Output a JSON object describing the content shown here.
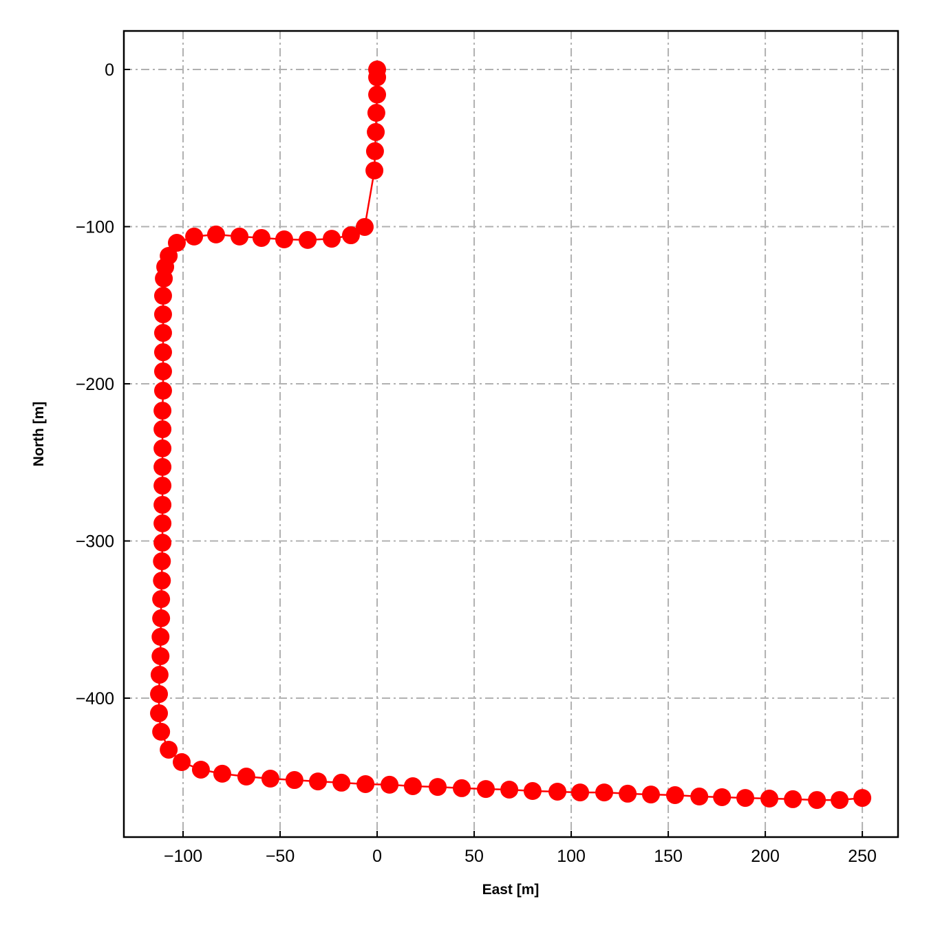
{
  "chart_data": {
    "type": "line",
    "title": "",
    "xlabel": "East [m]",
    "ylabel": "North [m]",
    "xlim": [
      -130.5,
      268.4
    ],
    "ylim": [
      -488.4,
      24.5
    ],
    "xticks": [
      -100,
      -50,
      0,
      50,
      100,
      150,
      200,
      250
    ],
    "xtick_labels": [
      "−100",
      "−50",
      "0",
      "50",
      "100",
      "150",
      "200",
      "250"
    ],
    "yticks": [
      0,
      -100,
      -200,
      -300,
      -400
    ],
    "ytick_labels": [
      "0",
      "−100",
      "−200",
      "−300",
      "−400"
    ],
    "grid": true,
    "grid_style": "dash-dot",
    "grid_color": "#b0b0b0",
    "line_color": "#ff0000",
    "marker": "circle",
    "series": [
      {
        "x": [
          0,
          0,
          0,
          -0.4,
          -0.7,
          -1.1,
          -1.4,
          -6.4,
          -13.5,
          -23.4,
          -35.8,
          -47.9,
          -59.6,
          -70.9,
          -83,
          -94.3,
          -103.2,
          -107.4,
          -109.2,
          -109.9,
          -110.3,
          -110.3,
          -110.3,
          -110.3,
          -110.3,
          -110.3,
          -110.6,
          -110.6,
          -110.6,
          -110.6,
          -110.6,
          -110.6,
          -110.6,
          -110.6,
          -110.9,
          -110.9,
          -111.3,
          -111.3,
          -111.6,
          -111.6,
          -112.1,
          -112.4,
          -112.4,
          -111.3,
          -107.4,
          -100.7,
          -90.8,
          -79.8,
          -67.4,
          -55,
          -42.6,
          -30.5,
          -18.4,
          -6,
          6.4,
          18.4,
          31.2,
          43.6,
          56,
          68.1,
          80.1,
          92.9,
          104.6,
          117,
          129.1,
          141.1,
          153.5,
          166,
          177.7,
          189.7,
          202.1,
          214.2,
          226.6,
          238.3,
          250
        ],
        "y": [
          0,
          -5,
          -16,
          -27.6,
          -39.8,
          -52,
          -64.3,
          -100.2,
          -105.5,
          -107.7,
          -108.5,
          -108.1,
          -107.2,
          -106.3,
          -105,
          -106.3,
          -110.3,
          -118.6,
          -125.6,
          -133,
          -144,
          -155.8,
          -167.6,
          -179.9,
          -192.1,
          -204.4,
          -217.1,
          -228.9,
          -241.1,
          -252.9,
          -264.8,
          -277,
          -288.8,
          -301.1,
          -312.9,
          -325.2,
          -337,
          -349.2,
          -361,
          -373.3,
          -385.1,
          -397.4,
          -409.6,
          -421.4,
          -432.8,
          -440.7,
          -445.5,
          -448.1,
          -449.9,
          -451.2,
          -452.1,
          -453,
          -453.8,
          -454.7,
          -455.1,
          -456,
          -456.5,
          -457.3,
          -457.8,
          -458.2,
          -459.1,
          -459.5,
          -460,
          -460,
          -460.8,
          -461.3,
          -461.7,
          -462.6,
          -463,
          -463.5,
          -463.9,
          -464.3,
          -464.8,
          -464.8,
          -463.5
        ]
      }
    ]
  }
}
